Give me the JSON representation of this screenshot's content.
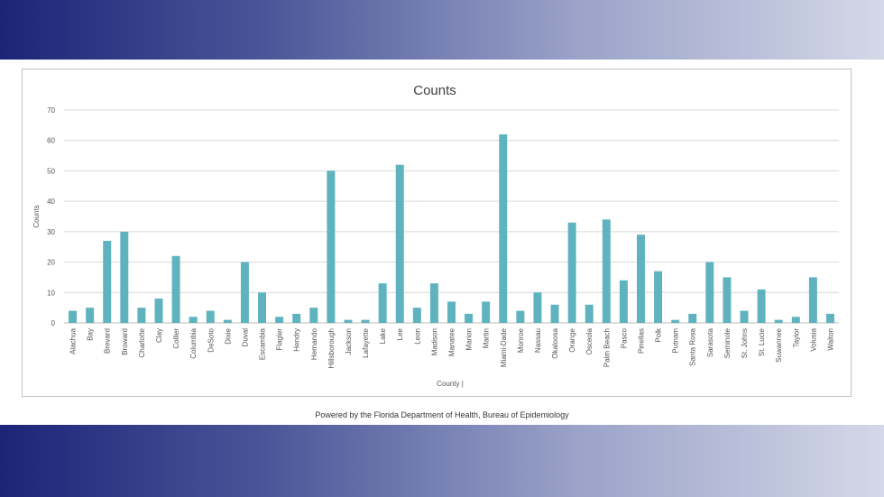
{
  "colors": {
    "bar": "#5eb3bf",
    "grid": "#d9d9d9",
    "axis_text": "#555555",
    "title_text": "#404040",
    "band_start": "#1c2478",
    "band_end": "#d4d8e8"
  },
  "footer": {
    "credit": "Powered by the Florida Department of Health, Bureau of Epidemiology"
  },
  "chart_data": {
    "type": "bar",
    "title": "Counts",
    "xlabel": "County |",
    "ylabel": "Counts",
    "ylim": [
      0,
      70
    ],
    "yticks": [
      0,
      10,
      20,
      30,
      40,
      50,
      60,
      70
    ],
    "grid": true,
    "legend": "none",
    "categories": [
      "Alachua",
      "Bay",
      "Brevard",
      "Broward",
      "Charlotte",
      "Clay",
      "Collier",
      "Columbia",
      "DeSoto",
      "Dixie",
      "Duval",
      "Escambia",
      "Flagler",
      "Hendry",
      "Hernando",
      "Hillsborough",
      "Jackson",
      "Lafayette",
      "Lake",
      "Lee",
      "Leon",
      "Madison",
      "Manatee",
      "Marion",
      "Martin",
      "Miami-Dade",
      "Monroe",
      "Nassau",
      "Okaloosa",
      "Orange",
      "Osceola",
      "Palm Beach",
      "Pasco",
      "Pinellas",
      "Polk",
      "Putnam",
      "Santa Rosa",
      "Sarasota",
      "Seminole",
      "St. Johns",
      "St. Lucie",
      "Suwannee",
      "Taylor",
      "Volusia",
      "Walton"
    ],
    "values": [
      4,
      5,
      27,
      30,
      5,
      8,
      22,
      2,
      4,
      1,
      20,
      10,
      2,
      3,
      5,
      50,
      1,
      1,
      13,
      52,
      5,
      13,
      7,
      3,
      7,
      62,
      4,
      10,
      6,
      33,
      6,
      34,
      14,
      29,
      17,
      1,
      3,
      20,
      15,
      4,
      11,
      1,
      2,
      15,
      3
    ]
  }
}
